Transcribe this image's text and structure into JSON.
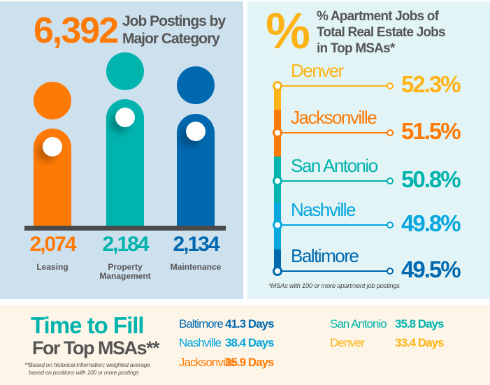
{
  "colors": {
    "orange": "#fe7a05",
    "teal": "#00b3ad",
    "blue": "#0068ae",
    "gold": "#fdb316",
    "lightblue": "#06a6de",
    "gray": "#555555"
  },
  "job_postings": {
    "total": "6,392",
    "title_line1": "Job Postings by",
    "title_line2": "Major Category",
    "categories": [
      {
        "value": "2,074",
        "label": "Leasing",
        "color": "#fe7a05"
      },
      {
        "value": "2,184",
        "label_line1": "Property",
        "label_line2": "Management",
        "color": "#00b3ad"
      },
      {
        "value": "2,134",
        "label": "Maintenance",
        "color": "#0068ae"
      }
    ]
  },
  "apartment_share": {
    "symbol": "%",
    "title_line1": "% Apartment Jobs of",
    "title_line2": "Total Real Estate Jobs",
    "title_line3": "in Top MSAs*",
    "rows": [
      {
        "city": "Denver",
        "value": "52.3%",
        "color": "#fdb316"
      },
      {
        "city": "Jacksonville",
        "value": "51.5%",
        "color": "#fe7a05"
      },
      {
        "city": "San Antonio",
        "value": "50.8%",
        "color": "#00b3ad"
      },
      {
        "city": "Nashville",
        "value": "49.8%",
        "color": "#06a6de"
      },
      {
        "city": "Baltimore",
        "value": "49.5%",
        "color": "#0068ae"
      }
    ],
    "footnote": "*MSAs with 100 or more apartment job postings"
  },
  "time_to_fill": {
    "title": "Time to Fill",
    "subtitle": "For Top MSAs**",
    "footnote_line1": "**Based on historical information; weighted average",
    "footnote_line2": "based on positions with 100 or more postings",
    "entries": [
      {
        "city": "Baltimore",
        "days": "41.3 Days",
        "color": "#0068ae"
      },
      {
        "city": "Nashville",
        "days": "38.4 Days",
        "color": "#06a6de"
      },
      {
        "city": "Jacksonville",
        "days": "35.9 Days",
        "color": "#fe7a05"
      },
      {
        "city": "San Antonio",
        "days": "35.8 Days",
        "color": "#00b3ad"
      },
      {
        "city": "Denver",
        "days": "33.4 Days",
        "color": "#fdb316"
      }
    ]
  }
}
